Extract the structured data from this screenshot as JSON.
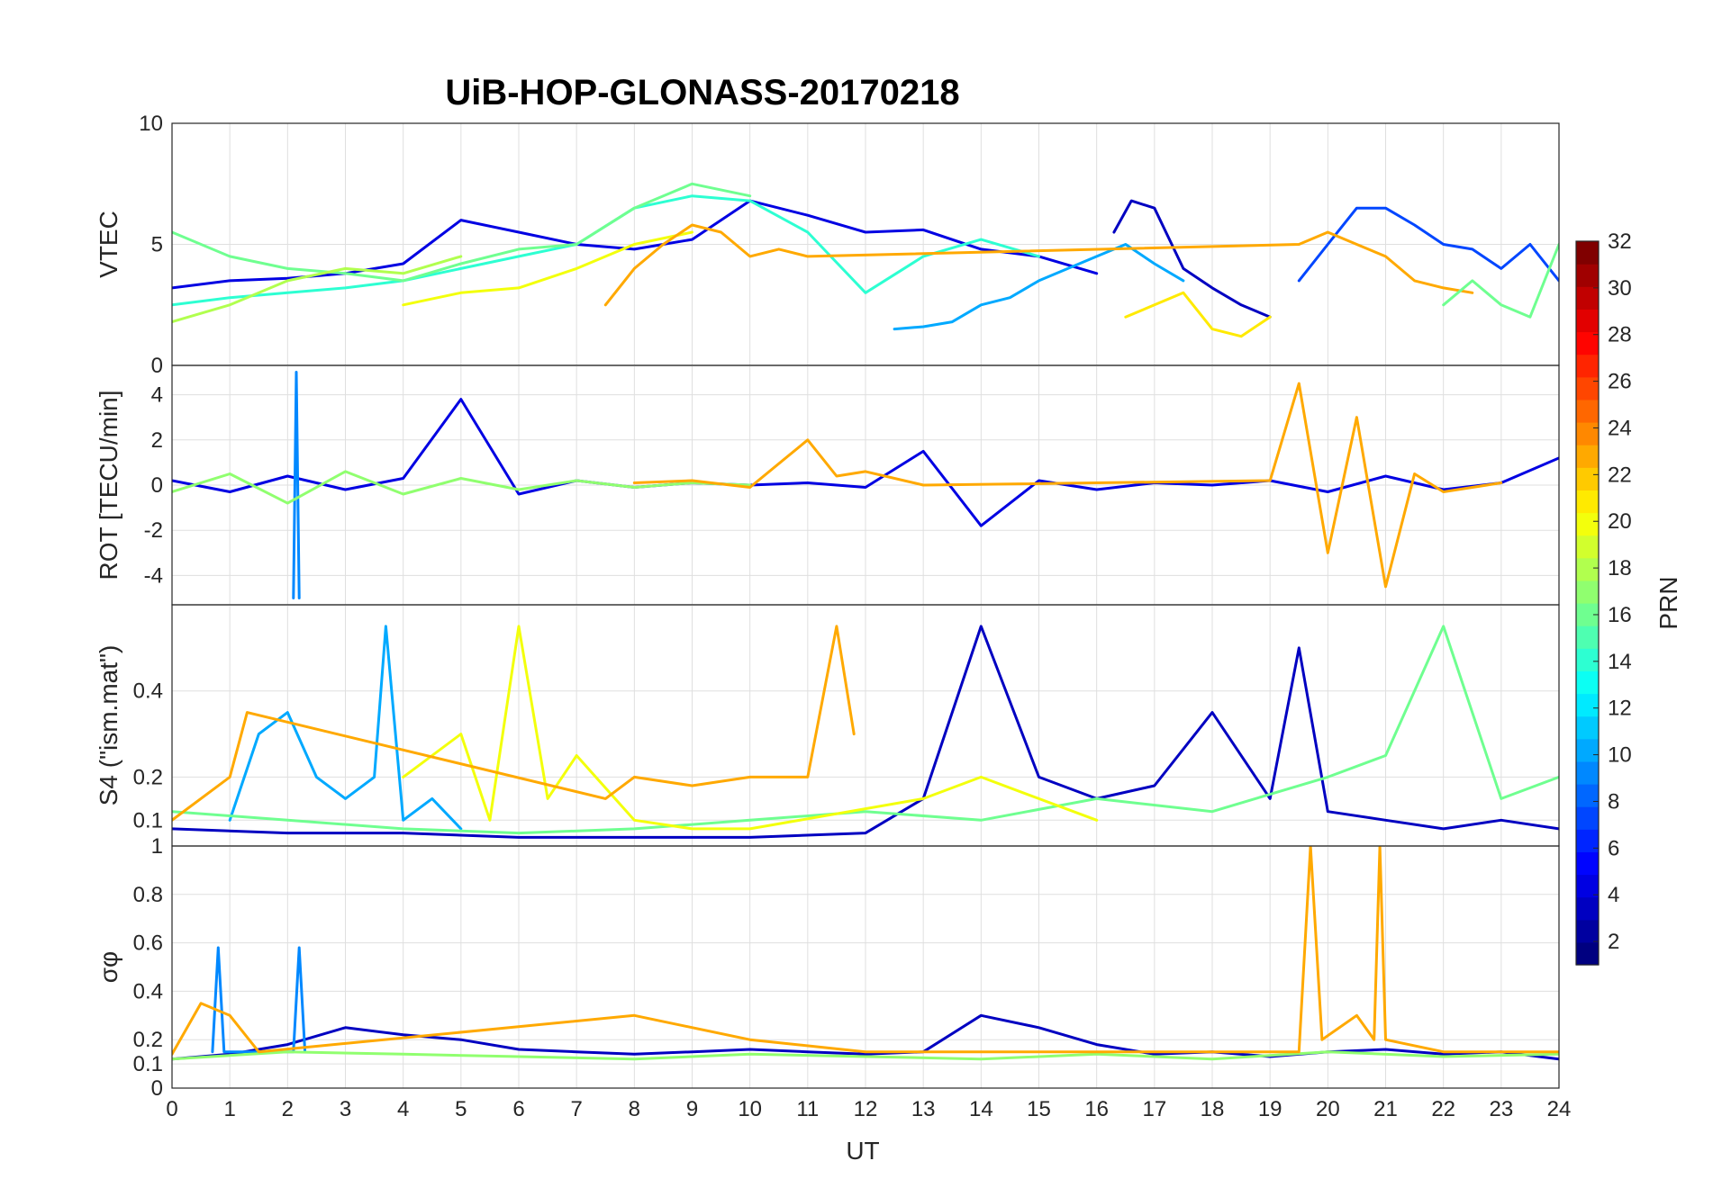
{
  "chart_data": {
    "type": "line",
    "title": "UiB-HOP-GLONASS-20170218",
    "xlabel": "UT",
    "xlim": [
      0,
      24
    ],
    "xticks": [
      "0",
      "1",
      "2",
      "3",
      "4",
      "5",
      "6",
      "7",
      "8",
      "9",
      "10",
      "11",
      "12",
      "13",
      "14",
      "15",
      "16",
      "17",
      "18",
      "19",
      "20",
      "21",
      "22",
      "23",
      "24"
    ],
    "grid": true,
    "colorbar": {
      "label": "PRN",
      "colormap": "jet",
      "range": [
        1,
        32
      ],
      "ticks": [
        "2",
        "4",
        "6",
        "8",
        "10",
        "12",
        "14",
        "16",
        "18",
        "20",
        "22",
        "24",
        "26",
        "28",
        "30",
        "32"
      ]
    },
    "panels": [
      {
        "ylabel": "VTEC",
        "ylim": [
          0,
          10
        ],
        "yticks": [
          "0",
          "5",
          "10"
        ],
        "series": [
          {
            "prn": 4,
            "x": [
              0,
              1,
              2,
              3,
              4,
              5,
              6,
              7,
              8,
              9,
              10,
              11,
              12,
              13,
              14,
              15,
              16
            ],
            "y": [
              3.2,
              3.5,
              3.6,
              3.8,
              4.2,
              6.0,
              5.5,
              5.0,
              4.8,
              5.2,
              6.8,
              6.2,
              5.5,
              5.6,
              4.8,
              4.5,
              3.8
            ]
          },
          {
            "prn": 3,
            "x": [
              16.3,
              16.6,
              17,
              17.5,
              18,
              18.5,
              19
            ],
            "y": [
              5.5,
              6.8,
              6.5,
              4.0,
              3.2,
              2.5,
              2.0
            ]
          },
          {
            "prn": 7,
            "x": [
              19.5,
              20,
              20.5,
              21,
              21.5,
              22,
              22.5,
              23,
              23.5,
              24
            ],
            "y": [
              3.5,
              5.0,
              6.5,
              6.5,
              5.8,
              5.0,
              4.8,
              4.0,
              5.0,
              3.5
            ]
          },
          {
            "prn": 10,
            "x": [
              12.5,
              13,
              13.5,
              14,
              14.5,
              15,
              15.5,
              16,
              16.5,
              17,
              17.5
            ],
            "y": [
              1.5,
              1.6,
              1.8,
              2.5,
              2.8,
              3.5,
              4.0,
              4.5,
              5.0,
              4.2,
              3.5
            ]
          },
          {
            "prn": 14,
            "x": [
              0,
              1,
              2,
              3,
              4,
              5,
              6,
              7,
              8,
              9,
              10,
              11,
              12,
              13,
              14,
              15
            ],
            "y": [
              2.5,
              2.8,
              3.0,
              3.2,
              3.5,
              4.0,
              4.5,
              5.0,
              6.5,
              7.0,
              6.8,
              5.5,
              3.0,
              4.5,
              5.2,
              4.5
            ]
          },
          {
            "prn": 16,
            "x": [
              0,
              1,
              2,
              3,
              4,
              5,
              6,
              7,
              8,
              9,
              10
            ],
            "y": [
              5.5,
              4.5,
              4.0,
              3.8,
              3.5,
              4.2,
              4.8,
              5.0,
              6.5,
              7.5,
              7.0
            ]
          },
          {
            "prn": 18,
            "x": [
              0,
              1,
              2,
              3,
              4,
              5
            ],
            "y": [
              1.8,
              2.5,
              3.5,
              4.0,
              3.8,
              4.5
            ]
          },
          {
            "prn": 20,
            "x": [
              4,
              5,
              6,
              7,
              8,
              9
            ],
            "y": [
              2.5,
              3.0,
              3.2,
              4.0,
              5.0,
              5.5
            ]
          },
          {
            "prn": 21,
            "x": [
              16.5,
              17,
              17.5,
              18,
              18.5,
              19
            ],
            "y": [
              2.0,
              2.5,
              3.0,
              1.5,
              1.2,
              2.0
            ]
          },
          {
            "prn": 23,
            "x": [
              7.5,
              8,
              8.5,
              9,
              9.5,
              10,
              10.5,
              11,
              19.5,
              20,
              20.5,
              21,
              21.5,
              22,
              22.5
            ],
            "y": [
              2.5,
              4.0,
              5.0,
              5.8,
              5.5,
              4.5,
              4.8,
              4.5,
              5.0,
              5.5,
              5.0,
              4.5,
              3.5,
              3.2,
              3.0
            ]
          },
          {
            "prn": 16,
            "x": [
              22,
              22.5,
              23,
              23.5,
              24
            ],
            "y": [
              2.5,
              3.5,
              2.5,
              2.0,
              5.0
            ]
          }
        ]
      },
      {
        "ylabel": "ROT [TECU/min]",
        "ylim": [
          -5.3,
          5.3
        ],
        "yticks": [
          "4",
          "2",
          "0",
          "-2",
          "-4"
        ],
        "series": [
          {
            "prn": 4,
            "x": [
              0,
              1,
              2,
              3,
              4,
              5,
              6,
              7,
              8,
              9,
              10,
              11,
              12,
              13,
              14,
              15,
              16,
              17,
              18,
              19,
              20,
              21,
              22,
              23,
              24
            ],
            "y": [
              0.2,
              -0.3,
              0.4,
              -0.2,
              0.3,
              3.8,
              -0.4,
              0.2,
              -0.1,
              0.1,
              0.0,
              0.1,
              -0.1,
              1.5,
              -1.8,
              0.2,
              -0.2,
              0.1,
              0.0,
              0.2,
              -0.3,
              0.4,
              -0.2,
              0.1,
              1.2
            ]
          },
          {
            "prn": 9,
            "x": [
              2.1,
              2.15,
              2.2
            ],
            "y": [
              -5.0,
              5.0,
              -5.0
            ]
          },
          {
            "prn": 17,
            "x": [
              0,
              1,
              2,
              3,
              4,
              5,
              6,
              7,
              8,
              9,
              10
            ],
            "y": [
              -0.3,
              0.5,
              -0.8,
              0.6,
              -0.4,
              0.3,
              -0.2,
              0.2,
              -0.1,
              0.1,
              0.0
            ]
          },
          {
            "prn": 23,
            "x": [
              8,
              9,
              10,
              11,
              11.5,
              12,
              13,
              19,
              19.5,
              20,
              20.5,
              21,
              21.5,
              22,
              23
            ],
            "y": [
              0.1,
              0.2,
              -0.1,
              2.0,
              0.4,
              0.6,
              0.0,
              0.2,
              4.5,
              -3.0,
              3.0,
              -4.5,
              0.5,
              -0.3,
              0.1
            ]
          }
        ]
      },
      {
        "ylabel": "S4 (\"ism.mat\")",
        "ylim": [
          0.04,
          0.6
        ],
        "yticks": [
          "0.4",
          "0.2",
          "0.1"
        ],
        "series": [
          {
            "prn": 3,
            "x": [
              0,
              2,
              4,
              6,
              8,
              10,
              12,
              13,
              14,
              15,
              16,
              17,
              18,
              19,
              19.5,
              20,
              21,
              22,
              23,
              24
            ],
            "y": [
              0.08,
              0.07,
              0.07,
              0.06,
              0.06,
              0.06,
              0.07,
              0.15,
              0.55,
              0.2,
              0.15,
              0.18,
              0.35,
              0.15,
              0.5,
              0.12,
              0.1,
              0.08,
              0.1,
              0.08
            ]
          },
          {
            "prn": 10,
            "x": [
              1,
              1.5,
              2,
              2.5,
              3,
              3.5,
              3.7,
              4,
              4.5,
              5
            ],
            "y": [
              0.1,
              0.3,
              0.35,
              0.2,
              0.15,
              0.2,
              0.55,
              0.1,
              0.15,
              0.08
            ]
          },
          {
            "prn": 16,
            "x": [
              0,
              2,
              4,
              6,
              8,
              10,
              12,
              14,
              16,
              18,
              20,
              21,
              22,
              23,
              24
            ],
            "y": [
              0.12,
              0.1,
              0.08,
              0.07,
              0.08,
              0.1,
              0.12,
              0.1,
              0.15,
              0.12,
              0.2,
              0.25,
              0.55,
              0.15,
              0.2
            ]
          },
          {
            "prn": 20,
            "x": [
              4,
              5,
              5.5,
              6,
              6.5,
              7,
              8,
              9,
              10,
              13,
              14,
              15,
              16
            ],
            "y": [
              0.2,
              0.3,
              0.1,
              0.55,
              0.15,
              0.25,
              0.1,
              0.08,
              0.08,
              0.15,
              0.2,
              0.15,
              0.1
            ]
          },
          {
            "prn": 23,
            "x": [
              0,
              1,
              1.3,
              7.5,
              8,
              9,
              10,
              11,
              11.5,
              11.8
            ],
            "y": [
              0.1,
              0.2,
              0.35,
              0.15,
              0.2,
              0.18,
              0.2,
              0.2,
              0.55,
              0.3
            ]
          }
        ]
      },
      {
        "ylabel": "σφ",
        "ylim": [
          0,
          1
        ],
        "yticks": [
          "0",
          "0.1",
          "0.2",
          "0.4",
          "0.6",
          "0.8",
          "1"
        ],
        "series": [
          {
            "prn": 3,
            "x": [
              0,
              1,
              2,
              3,
              4,
              5,
              6,
              7,
              8,
              9,
              10,
              11,
              12,
              13,
              14,
              15,
              16,
              17,
              18,
              19,
              20,
              21,
              22,
              23,
              24
            ],
            "y": [
              0.12,
              0.14,
              0.18,
              0.25,
              0.22,
              0.2,
              0.16,
              0.15,
              0.14,
              0.15,
              0.16,
              0.15,
              0.14,
              0.15,
              0.3,
              0.25,
              0.18,
              0.14,
              0.15,
              0.13,
              0.15,
              0.16,
              0.14,
              0.15,
              0.12
            ]
          },
          {
            "prn": 9,
            "x": [
              0.7,
              0.8,
              0.9,
              2.1,
              2.2,
              2.3
            ],
            "y": [
              0.15,
              0.58,
              0.15,
              0.15,
              0.58,
              0.15
            ]
          },
          {
            "prn": 17,
            "x": [
              0,
              2,
              4,
              6,
              8,
              10,
              12,
              14,
              16,
              18,
              20,
              22,
              24
            ],
            "y": [
              0.12,
              0.15,
              0.14,
              0.13,
              0.12,
              0.14,
              0.13,
              0.12,
              0.14,
              0.12,
              0.15,
              0.13,
              0.14
            ]
          },
          {
            "prn": 23,
            "x": [
              0,
              0.5,
              1,
              1.5,
              8,
              10,
              12,
              19.5,
              19.7,
              19.9,
              20.5,
              20.8,
              20.9,
              21,
              22,
              24
            ],
            "y": [
              0.14,
              0.35,
              0.3,
              0.15,
              0.3,
              0.2,
              0.15,
              0.15,
              1.0,
              0.2,
              0.3,
              0.2,
              1.0,
              0.2,
              0.15,
              0.15
            ]
          }
        ]
      }
    ]
  }
}
